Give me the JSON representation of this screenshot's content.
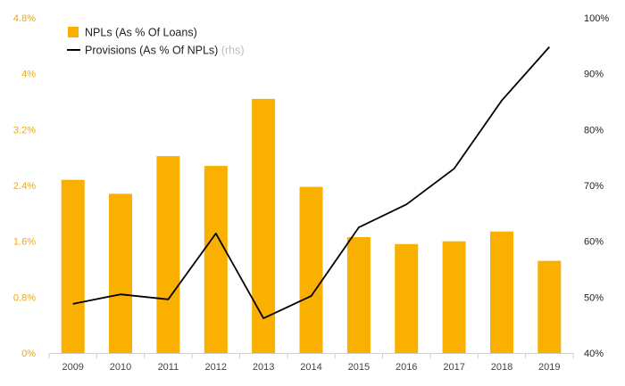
{
  "chart_data": {
    "type": "bar+line",
    "categories": [
      "2009",
      "2010",
      "2011",
      "2012",
      "2013",
      "2014",
      "2015",
      "2016",
      "2017",
      "2018",
      "2019"
    ],
    "series": [
      {
        "name": "NPLs (As % Of Loans)",
        "type": "bar",
        "axis": "left",
        "color": "#F9B000",
        "values": [
          2.48,
          2.28,
          2.82,
          2.68,
          3.64,
          2.38,
          1.66,
          1.56,
          1.6,
          1.74,
          1.32
        ]
      },
      {
        "name": "Provisions (As % Of NPLs)",
        "type": "line",
        "axis": "right",
        "color": "#000000",
        "values": [
          48.8,
          50.5,
          49.6,
          61.4,
          46.2,
          50.2,
          62.5,
          66.6,
          73.0,
          85.2,
          94.8
        ]
      }
    ],
    "y_left": {
      "ylim": [
        0,
        4.8
      ],
      "ticks": [
        0,
        0.8,
        1.6,
        2.4,
        3.2,
        4,
        4.8
      ],
      "tick_labels": [
        "0%",
        "0.8%",
        "1.6%",
        "2.4%",
        "3.2%",
        "4%",
        "4.8%"
      ],
      "color": "#F5A800"
    },
    "y_right": {
      "ylim": [
        40,
        100
      ],
      "ticks": [
        40,
        50,
        60,
        70,
        80,
        90,
        100
      ],
      "tick_labels": [
        "40%",
        "50%",
        "60%",
        "70%",
        "80%",
        "90%",
        "100%"
      ]
    },
    "legend": {
      "position": "top-left",
      "items": [
        {
          "label": "NPLs (As % Of Loans)",
          "suffix": "",
          "symbol": "square",
          "color": "#F9B000"
        },
        {
          "label": "Provisions (As % Of NPLs)",
          "suffix": " (rhs)",
          "symbol": "line",
          "color": "#000000"
        }
      ]
    },
    "grid": false,
    "title": "",
    "xlabel": "",
    "ylabel": ""
  }
}
